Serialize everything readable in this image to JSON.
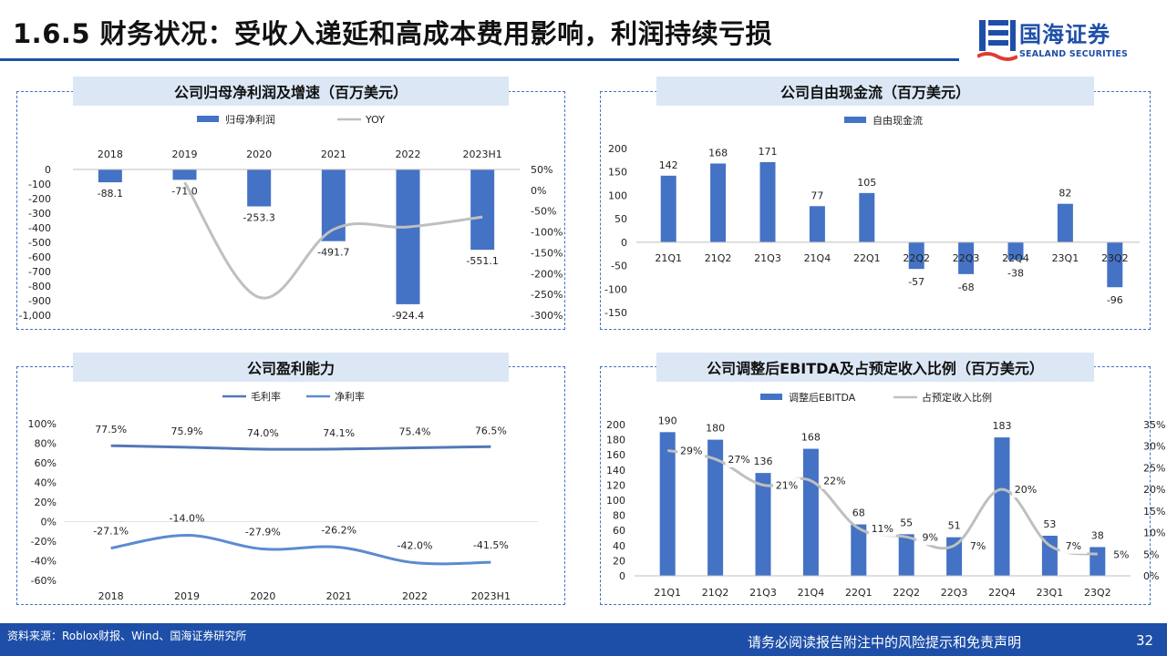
{
  "header": {
    "title": "1.6.5 财务状况：受收入递延和高成本费用影响，利润持续亏损"
  },
  "logo": {
    "name": "国海证券",
    "sub": "SEALAND SECURITIES"
  },
  "colors": {
    "bar": "#4472c4",
    "line_gray": "#bfbfbf",
    "line_blue": "#5b8bd0",
    "accent": "#1e4fa8",
    "title_bg": "#dce7f5"
  },
  "footer": {
    "source": "资料来源：Roblox财报、Wind、国海证券研究所",
    "disclaimer": "请务必阅读报告附注中的风险提示和免责声明",
    "page": "32"
  },
  "chart_data": [
    {
      "id": "net-profit",
      "type": "bar+line",
      "title": "公司归母净利润及增速（百万美元）",
      "categories": [
        "2018",
        "2019",
        "2020",
        "2021",
        "2022",
        "2023H1"
      ],
      "series": [
        {
          "name": "归母净利润",
          "type": "bar",
          "axis": "left",
          "values": [
            -88.1,
            -71.0,
            -253.3,
            -491.7,
            -924.4,
            -551.1
          ],
          "labels": [
            "-88.1",
            "-71.0",
            "-253.3",
            "-491.7",
            "-924.4",
            "-551.1"
          ]
        },
        {
          "name": "YOY",
          "type": "line",
          "axis": "right",
          "values": [
            null,
            0.19,
            -2.57,
            -0.94,
            -0.88,
            -0.64
          ]
        }
      ],
      "ylim": [
        -1000,
        0
      ],
      "yticks": [
        0,
        -100,
        -200,
        -300,
        -400,
        -500,
        -600,
        -700,
        -800,
        -900,
        -1000
      ],
      "ytick_labels": [
        "0",
        "-100",
        "-200",
        "-300",
        "-400",
        "-500",
        "-600",
        "-700",
        "-800",
        "-900",
        "-1,000"
      ],
      "y2lim": [
        -3.0,
        0.5
      ],
      "y2ticks": [
        0.5,
        0,
        -0.5,
        -1.0,
        -1.5,
        -2.0,
        -2.5,
        -3.0
      ],
      "y2tick_labels": [
        "50%",
        "0%",
        "-50%",
        "-100%",
        "-150%",
        "-200%",
        "-250%",
        "-300%"
      ],
      "xaxis_position": "top",
      "legend": "top"
    },
    {
      "id": "free-cash-flow",
      "type": "bar",
      "title": "公司自由现金流（百万美元）",
      "categories": [
        "21Q1",
        "21Q2",
        "21Q3",
        "21Q4",
        "22Q1",
        "22Q2",
        "22Q3",
        "22Q4",
        "23Q1",
        "23Q2"
      ],
      "series": [
        {
          "name": "自由现金流",
          "values": [
            142,
            168,
            171,
            77,
            105,
            -57,
            -68,
            -38,
            82,
            -96
          ],
          "labels": [
            "142",
            "168",
            "171",
            "77",
            "105",
            "-57",
            "-68",
            "-38",
            "82",
            "-96"
          ]
        }
      ],
      "ylim": [
        -150,
        200
      ],
      "yticks": [
        200,
        150,
        100,
        50,
        0,
        -50,
        -100,
        -150
      ],
      "ytick_labels": [
        "200",
        "150",
        "100",
        "50",
        "0",
        "-50",
        "-100",
        "-150"
      ],
      "xaxis_position": "zero",
      "legend": "top-left"
    },
    {
      "id": "profitability",
      "type": "line",
      "title": "公司盈利能力",
      "categories": [
        "2018",
        "2019",
        "2020",
        "2021",
        "2022",
        "2023H1"
      ],
      "series": [
        {
          "name": "毛利率",
          "values": [
            0.775,
            0.759,
            0.74,
            0.741,
            0.754,
            0.765
          ],
          "labels": [
            "77.5%",
            "75.9%",
            "74.0%",
            "74.1%",
            "75.4%",
            "76.5%"
          ]
        },
        {
          "name": "净利率",
          "values": [
            -0.271,
            -0.14,
            -0.279,
            -0.262,
            -0.42,
            -0.415
          ],
          "labels": [
            "-27.1%",
            "-14.0%",
            "-27.9%",
            "-26.2%",
            "-42.0%",
            "-41.5%"
          ]
        }
      ],
      "ylim": [
        -0.6,
        1.0
      ],
      "yticks": [
        1.0,
        0.8,
        0.6,
        0.4,
        0.2,
        0,
        -0.2,
        -0.4,
        -0.6
      ],
      "ytick_labels": [
        "100%",
        "80%",
        "60%",
        "40%",
        "20%",
        "0%",
        "-20%",
        "-40%",
        "-60%"
      ],
      "legend": "top"
    },
    {
      "id": "ebitda",
      "type": "bar+line",
      "title": "公司调整后EBITDA及占预定收入比例（百万美元）",
      "categories": [
        "21Q1",
        "21Q2",
        "21Q3",
        "21Q4",
        "22Q1",
        "22Q2",
        "22Q3",
        "22Q4",
        "23Q1",
        "23Q2"
      ],
      "series": [
        {
          "name": "调整后EBITDA",
          "type": "bar",
          "axis": "left",
          "values": [
            190,
            180,
            136,
            168,
            68,
            55,
            51,
            183,
            53,
            38
          ],
          "labels": [
            "190",
            "180",
            "136",
            "168",
            "68",
            "55",
            "51",
            "183",
            "53",
            "38"
          ]
        },
        {
          "name": "占预定收入比例",
          "type": "line",
          "axis": "right",
          "values": [
            0.29,
            0.27,
            0.21,
            0.22,
            0.11,
            0.09,
            0.07,
            0.2,
            0.07,
            0.05
          ],
          "labels": [
            "29%",
            "27%",
            "21%",
            "22%",
            "11%",
            "9%",
            "7%",
            "20%",
            "7%",
            "5%"
          ]
        }
      ],
      "ylim": [
        0,
        200
      ],
      "yticks": [
        200,
        180,
        160,
        140,
        120,
        100,
        80,
        60,
        40,
        20,
        0
      ],
      "ytick_labels": [
        "200",
        "180",
        "160",
        "140",
        "120",
        "100",
        "80",
        "60",
        "40",
        "20",
        "0"
      ],
      "y2lim": [
        0,
        0.35
      ],
      "y2ticks": [
        0.35,
        0.3,
        0.25,
        0.2,
        0.15,
        0.1,
        0.05,
        0
      ],
      "y2tick_labels": [
        "35%",
        "30%",
        "25%",
        "20%",
        "15%",
        "10%",
        "5%",
        "0%"
      ],
      "legend": "top"
    }
  ]
}
